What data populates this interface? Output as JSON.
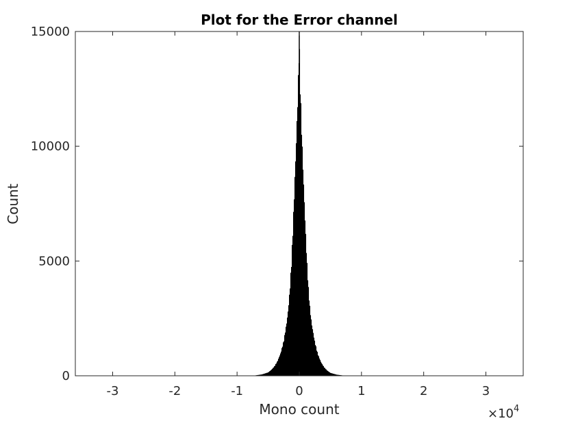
{
  "chart_data": {
    "type": "bar",
    "title": "Plot for the Error channel",
    "xlabel": "Mono count",
    "ylabel": "Count",
    "x_exponent_label": {
      "base": "×10",
      "exponent": "4"
    },
    "xlim": [
      -36000,
      36000
    ],
    "ylim": [
      0,
      15000
    ],
    "xticks": [
      -30000,
      -20000,
      -10000,
      0,
      10000,
      20000,
      30000
    ],
    "xtick_labels": [
      "-3",
      "-2",
      "-1",
      "0",
      "1",
      "2",
      "3"
    ],
    "yticks": [
      0,
      5000,
      10000,
      15000
    ],
    "ytick_labels": [
      "0",
      "5000",
      "10000",
      "15000"
    ],
    "grid": false,
    "bar_color": "#000000",
    "bins": {
      "x": [
        -7000,
        -6000,
        -5000,
        -4500,
        -4000,
        -3500,
        -3000,
        -2500,
        -2000,
        -1750,
        -1500,
        -1250,
        -1000,
        -750,
        -500,
        -250,
        -100,
        0,
        100,
        250,
        500,
        750,
        1000,
        1250,
        1500,
        1750,
        2000,
        2500,
        3000,
        3500,
        4000,
        4500,
        5000,
        6000,
        7000
      ],
      "counts": [
        20,
        60,
        150,
        260,
        420,
        650,
        1000,
        1550,
        2400,
        3000,
        3900,
        5100,
        6700,
        8500,
        10300,
        12300,
        13800,
        14900,
        13700,
        12100,
        10000,
        8200,
        6500,
        5000,
        3800,
        2900,
        2300,
        1500,
        950,
        600,
        380,
        230,
        130,
        50,
        15
      ]
    }
  }
}
